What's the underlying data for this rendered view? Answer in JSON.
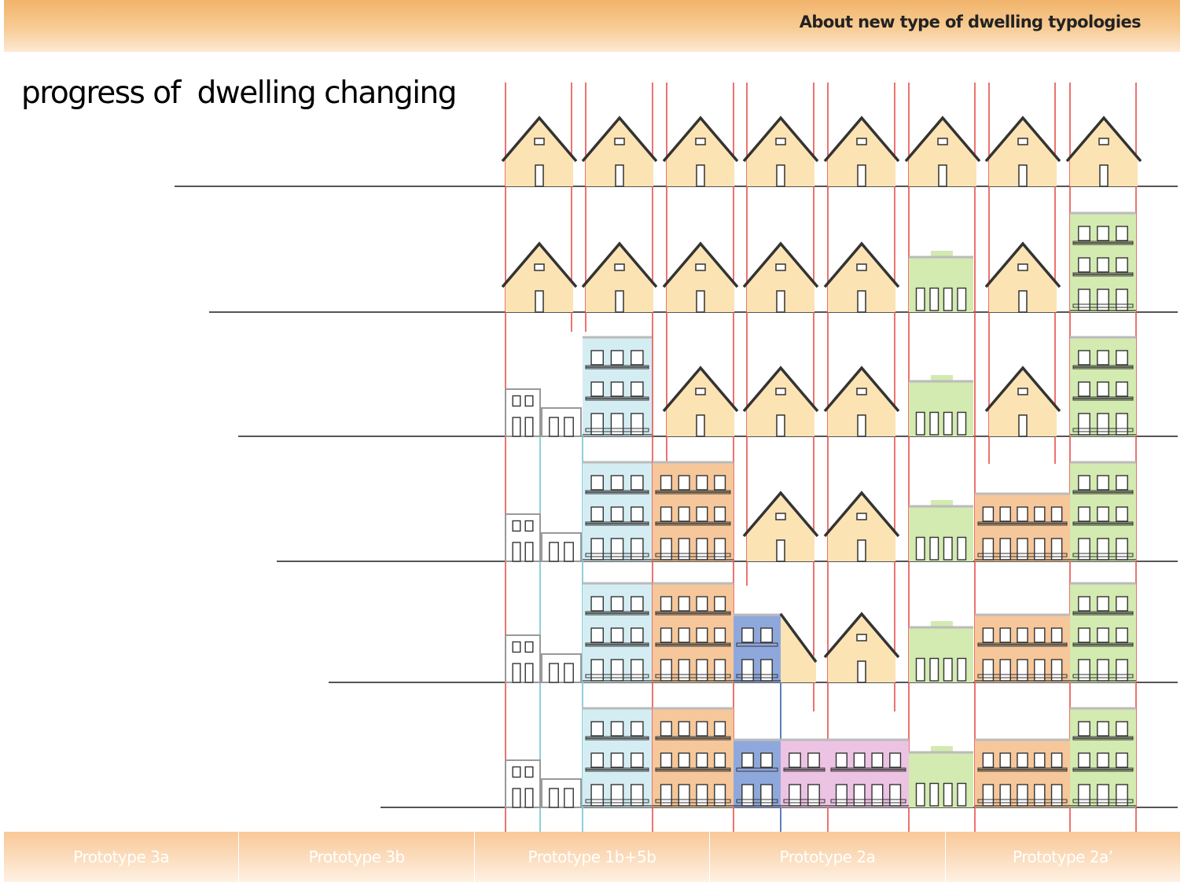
{
  "header": {
    "title": "About new type of dwelling typologies"
  },
  "page_title": "progress of  dwelling changing",
  "prototypes": [
    {
      "label": "Prototype 3a"
    },
    {
      "label": "Prototype 3b"
    },
    {
      "label": "Prototype 1b+5b"
    },
    {
      "label": "Prototype 2a"
    },
    {
      "label": "Prototype 2a’"
    }
  ],
  "colors": {
    "house_fill": "#fce3b3",
    "green": "#d3eab0",
    "light_blue": "#d4edf3",
    "orange": "#f6c79a",
    "blue": "#8fa8dc",
    "pink": "#ecc3e2",
    "red_line": "#e8504a",
    "teal_line": "#7fcbd8",
    "blue_line": "#4a6fb5",
    "ground": "#555555"
  },
  "rows": [
    {
      "stage": 1,
      "buildings": [
        "house",
        "house",
        "house",
        "house",
        "house",
        "house",
        "house",
        "house"
      ]
    },
    {
      "stage": 2,
      "buildings": [
        "house",
        "house",
        "house",
        "house",
        "house",
        "green-low-rise",
        "house",
        "green-apartment"
      ]
    },
    {
      "stage": 3,
      "buildings": [
        "small-row-unit",
        "small-row-unit",
        "light-blue-apartment",
        "house",
        "house",
        "house",
        "green-low-rise",
        "house",
        "green-apartment"
      ]
    },
    {
      "stage": 4,
      "buildings": [
        "small-row-unit",
        "small-row-unit",
        "light-blue-apartment",
        "orange-apartment",
        "house",
        "house",
        "green-low-rise",
        "orange-apartment",
        "green-apartment"
      ]
    },
    {
      "stage": 5,
      "buildings": [
        "small-row-unit",
        "small-row-unit",
        "light-blue-apartment",
        "orange-apartment",
        "blue-apartment",
        "half-house",
        "house",
        "green-low-rise",
        "orange-apartment",
        "green-apartment"
      ]
    },
    {
      "stage": 6,
      "buildings": [
        "small-row-unit",
        "small-row-unit",
        "light-blue-apartment",
        "orange-apartment",
        "blue-apartment",
        "pink-apartment",
        "pink-apartment",
        "green-low-rise",
        "orange-apartment",
        "green-apartment"
      ]
    }
  ]
}
